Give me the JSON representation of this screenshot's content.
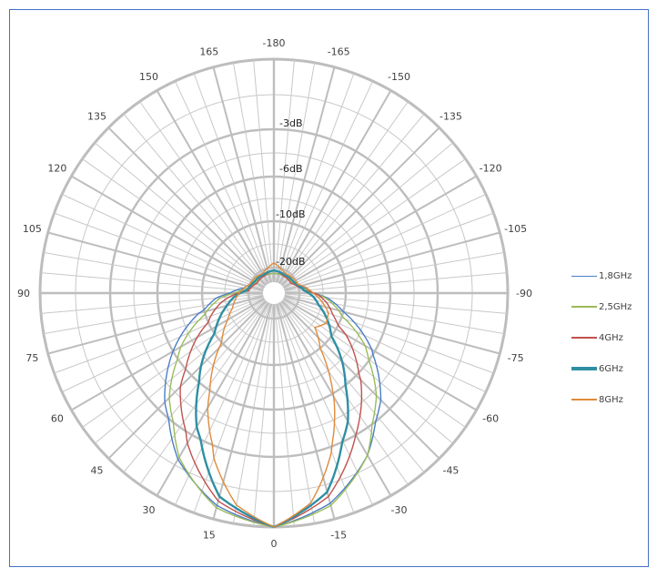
{
  "chart_data": {
    "type": "polar-line",
    "title": "",
    "angle_direction": "clockwise labels: 0 at bottom, positive to left, negative to right",
    "angle_ticks": [
      0,
      15,
      30,
      45,
      60,
      75,
      90,
      105,
      120,
      135,
      150,
      165,
      -180,
      -165,
      -150,
      -135,
      -120,
      -105,
      -90,
      -75,
      -60,
      -45,
      -30,
      -15
    ],
    "radial_labels": [
      "-3dB",
      "-6dB",
      "-10dB",
      "-20dB"
    ],
    "radial_rings_db": [
      0,
      -3,
      -6,
      -10,
      -20
    ],
    "legend_position": "right",
    "series": [
      {
        "name": "1,8GHz",
        "color": "#4A7EC7",
        "width": 1.4,
        "angles": [
          0,
          15,
          30,
          45,
          60,
          75,
          85,
          90,
          100,
          120,
          150,
          180,
          -150,
          -120,
          -100,
          -90,
          -85,
          -75,
          -60,
          -45,
          -30,
          -15
        ],
        "db": [
          0,
          -0.6,
          -1.8,
          -3.6,
          -6,
          -9.5,
          -13,
          -16,
          -19,
          -21,
          -22,
          -22,
          -22,
          -21,
          -19,
          -17,
          -14,
          -10,
          -6.3,
          -3.8,
          -2.0,
          -0.7
        ]
      },
      {
        "name": "2,5GHz",
        "color": "#9BBB59",
        "width": 1.4,
        "angles": [
          0,
          15,
          30,
          45,
          60,
          75,
          85,
          90,
          100,
          120,
          150,
          180,
          -150,
          -120,
          -100,
          -90,
          -85,
          -75,
          -60,
          -45,
          -30,
          -15
        ],
        "db": [
          0,
          -0.5,
          -1.9,
          -4.0,
          -6.8,
          -10.5,
          -14,
          -17,
          -20,
          -21.5,
          -22,
          -22,
          -22,
          -21.5,
          -19.5,
          -17,
          -14.5,
          -11,
          -7,
          -4.2,
          -2.0,
          -0.6
        ]
      },
      {
        "name": "4GHz",
        "color": "#C0504D",
        "width": 1.4,
        "angles": [
          0,
          15,
          30,
          45,
          60,
          70,
          80,
          88,
          95,
          120,
          150,
          180,
          -150,
          -120,
          -95,
          -88,
          -80,
          -70,
          -60,
          -45,
          -30,
          -15
        ],
        "db": [
          0,
          -0.8,
          -2.6,
          -5.0,
          -8.5,
          -11,
          -14,
          -17,
          -20,
          -22,
          -22,
          -21,
          -22,
          -22,
          -19,
          -16,
          -14,
          -12,
          -9,
          -5.6,
          -3.0,
          -1.0
        ]
      },
      {
        "name": "6GHz",
        "color": "#2E8FA3",
        "width": 2.4,
        "angles": [
          0,
          15,
          30,
          45,
          55,
          65,
          75,
          85,
          95,
          120,
          150,
          180,
          -150,
          -120,
          -95,
          -85,
          -75,
          -65,
          -55,
          -45,
          -30,
          -15
        ],
        "db": [
          0,
          -1.0,
          -3.6,
          -7.2,
          -9.8,
          -12.5,
          -15,
          -17,
          -19.5,
          -21,
          -21.5,
          -21,
          -21.5,
          -21,
          -19,
          -17,
          -15.5,
          -13,
          -10.5,
          -7.8,
          -4.0,
          -1.2
        ]
      },
      {
        "name": "8GHz",
        "color": "#E08A3A",
        "width": 1.4,
        "angles": [
          0,
          10,
          20,
          30,
          40,
          50,
          60,
          70,
          80,
          90,
          110,
          150,
          180,
          -150,
          -110,
          -90,
          -80,
          -70,
          -60,
          -50,
          -40,
          -30,
          -20,
          -10
        ],
        "db": [
          0,
          -0.8,
          -2.5,
          -5,
          -8,
          -11,
          -14,
          -16,
          -17,
          -18,
          -20,
          -21,
          -19,
          -21,
          -20,
          -17,
          -15,
          -13,
          -12.5,
          -14,
          -10,
          -5.8,
          -2.8,
          -0.9
        ]
      }
    ]
  },
  "legend": {
    "items": [
      {
        "label": "1,8GHz",
        "color": "#4A7EC7",
        "thickness": 1
      },
      {
        "label": "2,5GHz",
        "color": "#9BBB59",
        "thickness": 2
      },
      {
        "label": "4GHz",
        "color": "#C0504D",
        "thickness": 2
      },
      {
        "label": "6GHz",
        "color": "#2E8FA3",
        "thickness": 4
      },
      {
        "label": "8GHz",
        "color": "#E08A3A",
        "thickness": 2
      }
    ]
  },
  "colors": {
    "frame": "#4472C4",
    "grid": "#C8C8C8",
    "grid_heavy": "#BDBDBD"
  }
}
